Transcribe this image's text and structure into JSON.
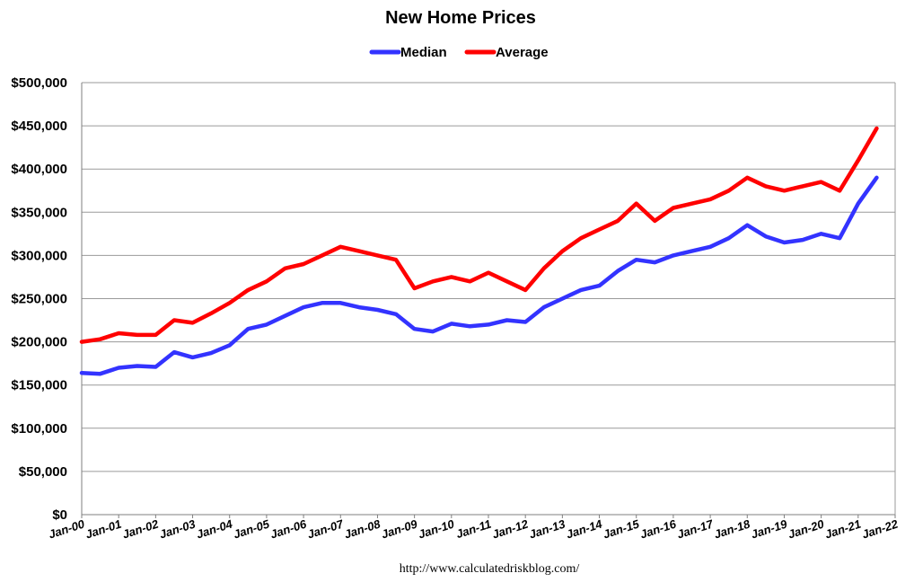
{
  "chart_data": {
    "type": "line",
    "title": "New Home Prices",
    "source_note": "http://www.calculatedriskblog.com/",
    "legend_position": "top",
    "grid": "horizontal",
    "x_tick_labels": [
      "Jan-00",
      "Jan-01",
      "Jan-02",
      "Jan-03",
      "Jan-04",
      "Jan-05",
      "Jan-06",
      "Jan-07",
      "Jan-08",
      "Jan-09",
      "Jan-10",
      "Jan-11",
      "Jan-12",
      "Jan-13",
      "Jan-14",
      "Jan-15",
      "Jan-16",
      "Jan-17",
      "Jan-18",
      "Jan-19",
      "Jan-20",
      "Jan-21",
      "Jan-22"
    ],
    "y_tick_labels": [
      "$0",
      "$50,000",
      "$100,000",
      "$150,000",
      "$200,000",
      "$250,000",
      "$300,000",
      "$350,000",
      "$400,000",
      "$450,000",
      "$500,000"
    ],
    "xlim": [
      "2000-01",
      "2022-01"
    ],
    "ylim": [
      0,
      500000
    ],
    "x": [
      "2000-01",
      "2000-07",
      "2001-01",
      "2001-07",
      "2002-01",
      "2002-07",
      "2003-01",
      "2003-07",
      "2004-01",
      "2004-07",
      "2005-01",
      "2005-07",
      "2006-01",
      "2006-07",
      "2007-01",
      "2007-07",
      "2008-01",
      "2008-07",
      "2009-01",
      "2009-07",
      "2010-01",
      "2010-07",
      "2011-01",
      "2011-07",
      "2012-01",
      "2012-07",
      "2013-01",
      "2013-07",
      "2014-01",
      "2014-07",
      "2015-01",
      "2015-07",
      "2016-01",
      "2016-07",
      "2017-01",
      "2017-07",
      "2018-01",
      "2018-07",
      "2019-01",
      "2019-07",
      "2020-01",
      "2020-07",
      "2021-01",
      "2021-07"
    ],
    "series": [
      {
        "name": "Median",
        "color": "#3333ff",
        "values": [
          164000,
          163000,
          170000,
          172000,
          171000,
          188000,
          182000,
          187000,
          196000,
          215000,
          220000,
          230000,
          240000,
          245000,
          245000,
          240000,
          237000,
          232000,
          215000,
          212000,
          221000,
          218000,
          220000,
          225000,
          223000,
          240000,
          250000,
          260000,
          265000,
          282000,
          295000,
          292000,
          300000,
          305000,
          310000,
          320000,
          335000,
          322000,
          315000,
          318000,
          325000,
          320000,
          360000,
          390000
        ]
      },
      {
        "name": "Average",
        "color": "#ff0000",
        "values": [
          200000,
          203000,
          210000,
          208000,
          208000,
          225000,
          222000,
          233000,
          245000,
          260000,
          270000,
          285000,
          290000,
          300000,
          310000,
          305000,
          300000,
          295000,
          262000,
          270000,
          275000,
          270000,
          280000,
          270000,
          260000,
          285000,
          305000,
          320000,
          330000,
          340000,
          360000,
          340000,
          355000,
          360000,
          365000,
          375000,
          390000,
          380000,
          375000,
          380000,
          385000,
          375000,
          410000,
          447000
        ]
      }
    ]
  }
}
